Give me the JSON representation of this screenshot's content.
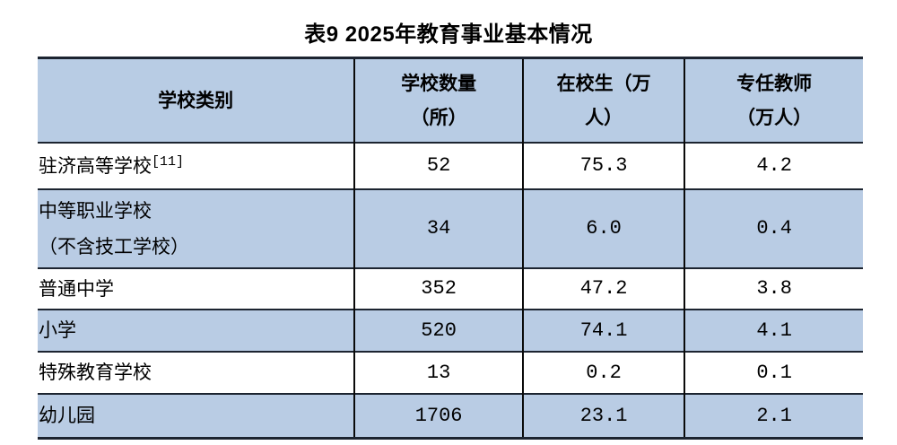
{
  "page": {
    "title": "表9 2025年教育事业基本情况"
  },
  "colors": {
    "header_bg": "#b8cce4",
    "stripe_bg": "#b9cce4",
    "border_dark": "#1c2430",
    "grid_black": "#0a0a0a",
    "text": "#000000"
  },
  "table": {
    "columns": [
      "学校类别",
      "学校数量\n（所）",
      "在校生（万\n人）",
      "专任教师\n（万人）"
    ],
    "rows": [
      {
        "label": "驻济高等学校",
        "sup": "[11]",
        "values": [
          "52",
          "75.3",
          "4.2"
        ]
      },
      {
        "label": "中等职业学校\n（不含技工学校）",
        "values": [
          "34",
          "6.0",
          "0.4"
        ]
      },
      {
        "label": "普通中学",
        "values": [
          "352",
          "47.2",
          "3.8"
        ]
      },
      {
        "label": "小学",
        "values": [
          "520",
          "74.1",
          "4.1"
        ]
      },
      {
        "label": "特殊教育学校",
        "values": [
          "13",
          "0.2",
          "0.1"
        ]
      },
      {
        "label": "幼儿园",
        "values": [
          "1706",
          "23.1",
          "2.1"
        ]
      }
    ]
  },
  "chart_data": {
    "type": "table",
    "title": "表9 2025年教育事业基本情况",
    "columns": [
      "学校类别",
      "学校数量（所）",
      "在校生（万人）",
      "专任教师（万人）"
    ],
    "rows": [
      [
        "驻济高等学校[11]",
        52,
        75.3,
        4.2
      ],
      [
        "中等职业学校（不含技工学校）",
        34,
        6.0,
        0.4
      ],
      [
        "普通中学",
        352,
        47.2,
        3.8
      ],
      [
        "小学",
        520,
        74.1,
        4.1
      ],
      [
        "特殊教育学校",
        13,
        0.2,
        0.1
      ],
      [
        "幼儿园",
        1706,
        23.1,
        2.1
      ]
    ],
    "layout_hints": {
      "striped_rows": true,
      "stripe_color": "#b9cce4",
      "header_color": "#b8cce4",
      "numeric_columns_centered": true,
      "first_column_left_aligned": true
    }
  }
}
